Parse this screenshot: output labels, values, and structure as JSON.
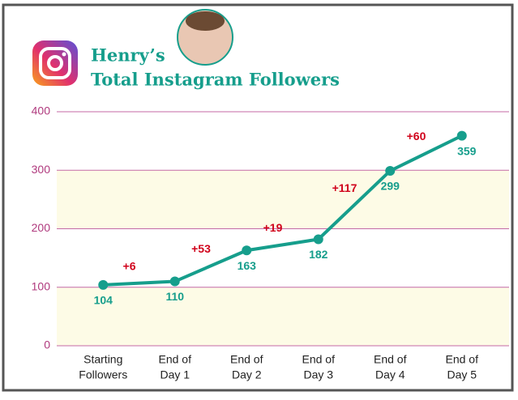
{
  "chart_data": {
    "type": "line",
    "title": "Henry’s",
    "subtitle": "Total Instagram Followers",
    "categories": [
      [
        "Starting",
        "Followers"
      ],
      [
        "End of",
        "Day 1"
      ],
      [
        "End of",
        "Day 2"
      ],
      [
        "End of",
        "Day 3"
      ],
      [
        "End of",
        "Day 4"
      ],
      [
        "End of",
        "Day 5"
      ]
    ],
    "series": [
      {
        "color": "#169e8c",
        "values": [
          104,
          110,
          163,
          182,
          299,
          359
        ]
      }
    ],
    "annotations": [
      "+6",
      "+53",
      "+19",
      "+117",
      "+60"
    ],
    "annotation_color": "#d0021b",
    "ylim": [
      0,
      400
    ],
    "yticks": [
      0,
      100,
      200,
      300,
      400
    ],
    "grid": true
  }
}
